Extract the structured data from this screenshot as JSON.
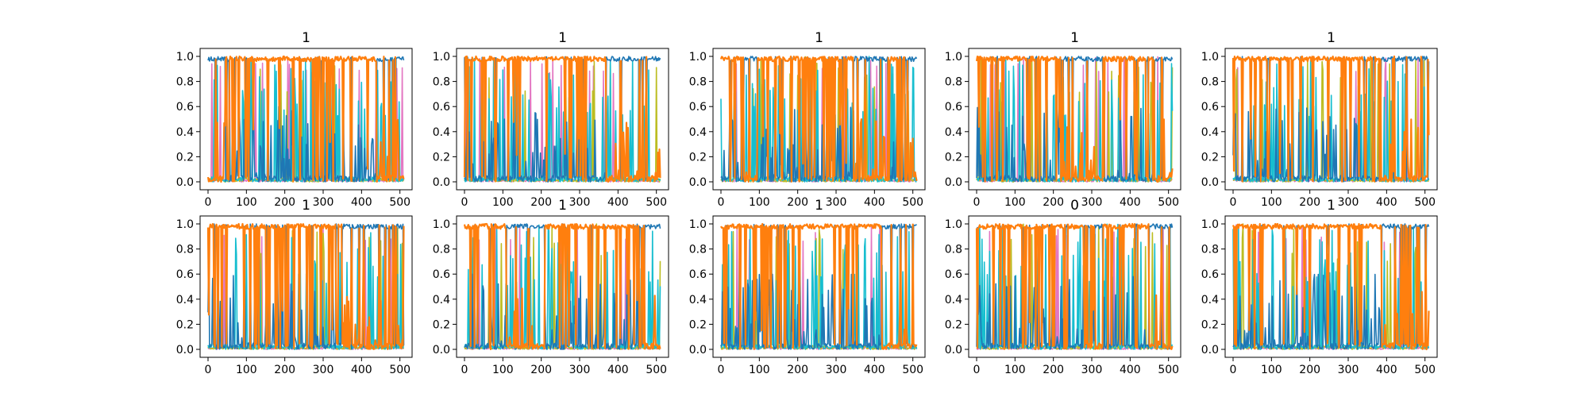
{
  "figure": {
    "background": "#ffffff"
  },
  "chart_data": [
    {
      "type": "line",
      "title": "1",
      "xlim": [
        0,
        511
      ],
      "ylim": [
        0.0,
        1.0
      ],
      "x_ticks": [
        0,
        100,
        200,
        300,
        400,
        500
      ],
      "y_ticks": [
        0.0,
        0.2,
        0.4,
        0.6,
        0.8,
        1.0
      ],
      "dominant_class_by_x": [
        [
          0,
          55,
          "blue"
        ],
        [
          55,
          440,
          "orange"
        ],
        [
          440,
          511,
          "blue"
        ]
      ]
    },
    {
      "type": "line",
      "title": "1",
      "xlim": [
        0,
        511
      ],
      "ylim": [
        0.0,
        1.0
      ],
      "x_ticks": [
        0,
        100,
        200,
        300,
        400,
        500
      ],
      "y_ticks": [
        0.0,
        0.2,
        0.4,
        0.6,
        0.8,
        1.0
      ],
      "dominant_class_by_x": [
        [
          0,
          370,
          "orange"
        ],
        [
          370,
          511,
          "blue"
        ]
      ]
    },
    {
      "type": "line",
      "title": "1",
      "xlim": [
        0,
        511
      ],
      "ylim": [
        0.0,
        1.0
      ],
      "x_ticks": [
        0,
        100,
        200,
        300,
        400,
        500
      ],
      "y_ticks": [
        0.0,
        0.2,
        0.4,
        0.6,
        0.8,
        1.0
      ],
      "dominant_class_by_x": [
        [
          0,
          60,
          "orange"
        ],
        [
          60,
          95,
          "blue"
        ],
        [
          95,
          345,
          "orange"
        ],
        [
          345,
          440,
          "blue"
        ],
        [
          440,
          480,
          "orange"
        ],
        [
          480,
          511,
          "blue"
        ]
      ]
    },
    {
      "type": "line",
      "title": "1",
      "xlim": [
        0,
        511
      ],
      "ylim": [
        0.0,
        1.0
      ],
      "x_ticks": [
        0,
        100,
        200,
        300,
        400,
        500
      ],
      "y_ticks": [
        0.0,
        0.2,
        0.4,
        0.6,
        0.8,
        1.0
      ],
      "dominant_class_by_x": [
        [
          0,
          215,
          "orange"
        ],
        [
          215,
          330,
          "blue"
        ],
        [
          330,
          460,
          "orange"
        ],
        [
          460,
          511,
          "blue"
        ]
      ]
    },
    {
      "type": "line",
      "title": "1",
      "xlim": [
        0,
        511
      ],
      "ylim": [
        0.0,
        1.0
      ],
      "x_ticks": [
        0,
        100,
        200,
        300,
        400,
        500
      ],
      "y_ticks": [
        0.0,
        0.2,
        0.4,
        0.6,
        0.8,
        1.0
      ],
      "dominant_class_by_x": [
        [
          0,
          390,
          "orange"
        ],
        [
          390,
          511,
          "blue"
        ]
      ]
    },
    {
      "type": "line",
      "title": "1",
      "xlim": [
        0,
        511
      ],
      "ylim": [
        0.0,
        1.0
      ],
      "x_ticks": [
        0,
        100,
        200,
        300,
        400,
        500
      ],
      "y_ticks": [
        0.0,
        0.2,
        0.4,
        0.6,
        0.8,
        1.0
      ],
      "dominant_class_by_x": [
        [
          0,
          350,
          "orange"
        ],
        [
          350,
          511,
          "blue"
        ]
      ]
    },
    {
      "type": "line",
      "title": "1",
      "xlim": [
        0,
        511
      ],
      "ylim": [
        0.0,
        1.0
      ],
      "x_ticks": [
        0,
        100,
        200,
        300,
        400,
        500
      ],
      "y_ticks": [
        0.0,
        0.2,
        0.4,
        0.6,
        0.8,
        1.0
      ],
      "dominant_class_by_x": [
        [
          0,
          110,
          "orange"
        ],
        [
          110,
          210,
          "blue"
        ],
        [
          210,
          450,
          "orange"
        ],
        [
          450,
          511,
          "blue"
        ]
      ]
    },
    {
      "type": "line",
      "title": "1",
      "xlim": [
        0,
        511
      ],
      "ylim": [
        0.0,
        1.0
      ],
      "x_ticks": [
        0,
        100,
        200,
        300,
        400,
        500
      ],
      "y_ticks": [
        0.0,
        0.2,
        0.4,
        0.6,
        0.8,
        1.0
      ],
      "dominant_class_by_x": [
        [
          0,
          420,
          "orange"
        ],
        [
          420,
          511,
          "blue"
        ]
      ]
    },
    {
      "type": "line",
      "title": "0",
      "xlim": [
        0,
        511
      ],
      "ylim": [
        0.0,
        1.0
      ],
      "x_ticks": [
        0,
        100,
        200,
        300,
        400,
        500
      ],
      "y_ticks": [
        0.0,
        0.2,
        0.4,
        0.6,
        0.8,
        1.0
      ],
      "dominant_class_by_x": [
        [
          0,
          280,
          "orange"
        ],
        [
          280,
          330,
          "blue"
        ],
        [
          330,
          450,
          "orange"
        ],
        [
          450,
          511,
          "blue"
        ]
      ]
    },
    {
      "type": "line",
      "title": "1",
      "xlim": [
        0,
        511
      ],
      "ylim": [
        0.0,
        1.0
      ],
      "x_ticks": [
        0,
        100,
        200,
        300,
        400,
        500
      ],
      "y_ticks": [
        0.0,
        0.2,
        0.4,
        0.6,
        0.8,
        1.0
      ],
      "dominant_class_by_x": [
        [
          0,
          385,
          "orange"
        ],
        [
          385,
          511,
          "blue"
        ]
      ]
    }
  ],
  "colors": {
    "blue": "#1f77b4",
    "orange": "#ff7f0e",
    "cyan": "#17becf",
    "olive": "#bcbd22",
    "green": "#2ca02c",
    "pink": "#e377c2",
    "purple": "#9467bd",
    "gray": "#7f7f7f"
  }
}
